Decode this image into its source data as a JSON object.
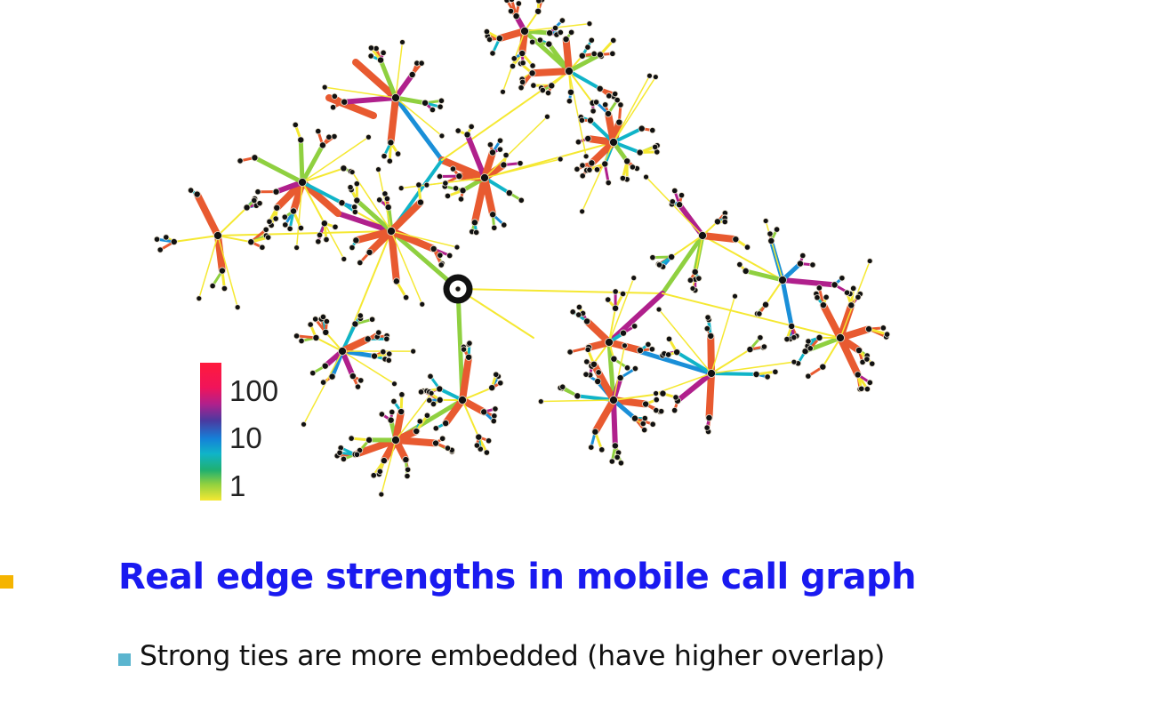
{
  "figure": {
    "legend": {
      "labels": [
        "100",
        "10",
        "1"
      ]
    }
  },
  "bullets": {
    "main": {
      "text": "Real edge strengths in mobile call graph"
    },
    "sub": {
      "text": "Strong ties are more embedded (have higher overlap)"
    }
  },
  "colors": {
    "heading": "#1a1af0",
    "main_bullet_marker": "#f5b400",
    "sub_bullet_marker": "#5bb5cf",
    "edge_strong": "#e85a30",
    "edge_medium": "#1a8fd8",
    "edge_weak": "#8fd040",
    "edge_weakest": "#f5e832",
    "node": "#111111"
  }
}
